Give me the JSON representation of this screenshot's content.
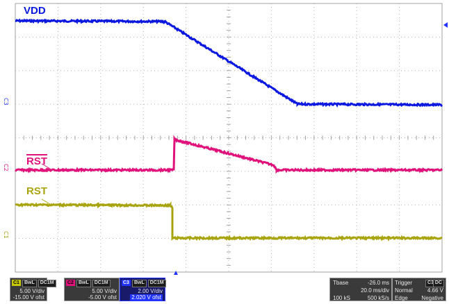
{
  "labels": {
    "vdd": "VDD",
    "rst_bar": "RST",
    "rst": "RST"
  },
  "channel_markers": {
    "c3": "C3",
    "c2": "C2",
    "c1": "C1"
  },
  "colors": {
    "vdd": "#0b18e0",
    "rst_bar": "#e0117a",
    "rst": "#a8a410",
    "grid": "#a0a0a0"
  },
  "status": {
    "c1": {
      "name": "C1",
      "badge1": "BwL",
      "badge2": "DC1M",
      "vdiv": "5.00 V/div",
      "ofst": "-15.00 V ofst",
      "color": "#c8c800"
    },
    "c2": {
      "name": "C2",
      "badge1": "BwL",
      "badge2": "DC1M",
      "vdiv": "5.00 V/div",
      "ofst": "-5.00 V ofst",
      "color": "#e0117a"
    },
    "c3": {
      "name": "C3",
      "badge1": "BwL",
      "badge2": "DC1M",
      "vdiv": "2.00 V/div",
      "ofst": "2.020 V ofst",
      "color": "#2233ff"
    },
    "timebase": {
      "label": "Tbase",
      "value": "-26.0 ms",
      "tdiv": "20.0 ms/div",
      "samples": "100 kS",
      "rate": "500 kS/s"
    },
    "trigger": {
      "label": "Trigger",
      "ch": "C3",
      "coupling": "DC",
      "mode": "Normal",
      "level": "4.66 V",
      "type": "Edge",
      "slope": "Negative"
    }
  }
}
